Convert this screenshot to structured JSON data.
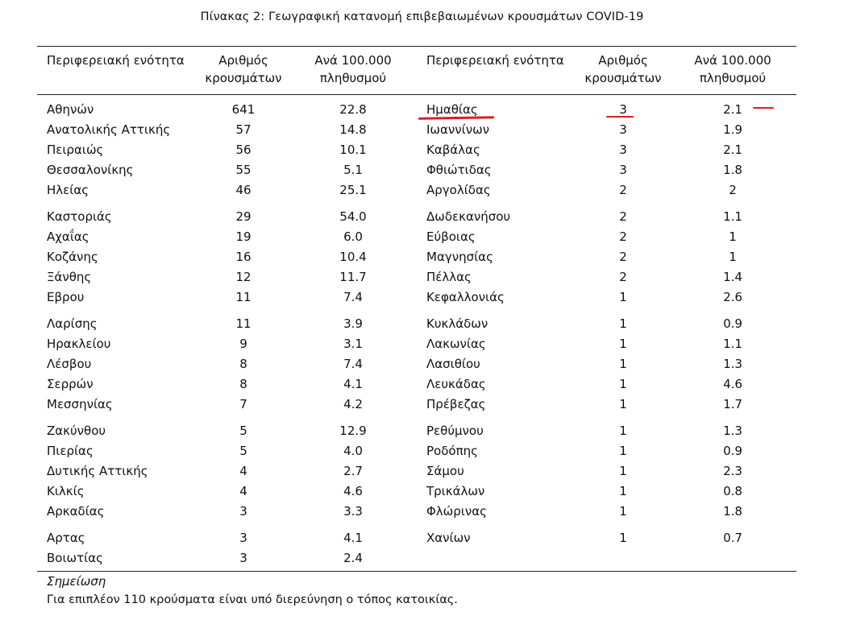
{
  "table": {
    "caption": "Πίνακας 2: Γεωγραφική κατανομή επιβεβαιωμένων κρουσμάτων COVID-19",
    "headers": {
      "region": "Περιφερειακή ενότητα",
      "cases_line1": "Αριθμός",
      "cases_line2": "κρουσμάτων",
      "per_line1": "Ανά 100.000",
      "per_line2": "πληθυσμού"
    },
    "left": [
      [
        "Αθηνών",
        "641",
        "22.8"
      ],
      [
        "Ανατολικής Αττικής",
        "57",
        "14.8"
      ],
      [
        "Πειραιώς",
        "56",
        "10.1"
      ],
      [
        "Θεσσαλονίκης",
        "55",
        "5.1"
      ],
      [
        "Ηλείας",
        "46",
        "25.1"
      ],
      [
        "Καστοριάς",
        "29",
        "54.0"
      ],
      [
        "Αχαΐας",
        "19",
        "6.0"
      ],
      [
        "Κοζάνης",
        "16",
        "10.4"
      ],
      [
        "Ξάνθης",
        "12",
        "11.7"
      ],
      [
        "Εβρου",
        "11",
        "7.4"
      ],
      [
        "Λαρίσης",
        "11",
        "3.9"
      ],
      [
        "Ηρακλείου",
        "9",
        "3.1"
      ],
      [
        "Λέσβου",
        "8",
        "7.4"
      ],
      [
        "Σερρών",
        "8",
        "4.1"
      ],
      [
        "Μεσσηνίας",
        "7",
        "4.2"
      ],
      [
        "Ζακύνθου",
        "5",
        "12.9"
      ],
      [
        "Πιερίας",
        "5",
        "4.0"
      ],
      [
        "Δυτικής Αττικής",
        "4",
        "2.7"
      ],
      [
        "Κιλκίς",
        "4",
        "4.6"
      ],
      [
        "Αρκαδίας",
        "3",
        "3.3"
      ],
      [
        "Αρτας",
        "3",
        "4.1"
      ],
      [
        "Βοιωτίας",
        "3",
        "2.4"
      ]
    ],
    "right": [
      [
        "Ημαθίας",
        "3",
        "2.1"
      ],
      [
        "Ιωαννίνων",
        "3",
        "1.9"
      ],
      [
        "Καβάλας",
        "3",
        "2.1"
      ],
      [
        "Φθιώτιδας",
        "3",
        "1.8"
      ],
      [
        "Αργολίδας",
        "2",
        "2"
      ],
      [
        "Δωδεκανήσου",
        "2",
        "1.1"
      ],
      [
        "Εύβοιας",
        "2",
        "1"
      ],
      [
        "Μαγνησίας",
        "2",
        "1"
      ],
      [
        "Πέλλας",
        "2",
        "1.4"
      ],
      [
        "Κεφαλλονιάς",
        "1",
        "2.6"
      ],
      [
        "Κυκλάδων",
        "1",
        "0.9"
      ],
      [
        "Λακωνίας",
        "1",
        "1.1"
      ],
      [
        "Λασιθίου",
        "1",
        "1.3"
      ],
      [
        "Λευκάδας",
        "1",
        "4.6"
      ],
      [
        "Πρέβεζας",
        "1",
        "1.7"
      ],
      [
        "Ρεθύμνου",
        "1",
        "1.3"
      ],
      [
        "Ροδόπης",
        "1",
        "0.9"
      ],
      [
        "Σάμου",
        "1",
        "2.3"
      ],
      [
        "Τρικάλων",
        "1",
        "0.8"
      ],
      [
        "Φλώρινας",
        "1",
        "1.8"
      ],
      [
        "Χανίων",
        "1",
        "0.7"
      ]
    ]
  },
  "note": {
    "title": "Σημείωση",
    "text": "Για επιπλέον 110 κρούσματα είναι υπό διερεύνηση ο τόπος κατοικίας."
  },
  "annotation_color": "#e01b24"
}
